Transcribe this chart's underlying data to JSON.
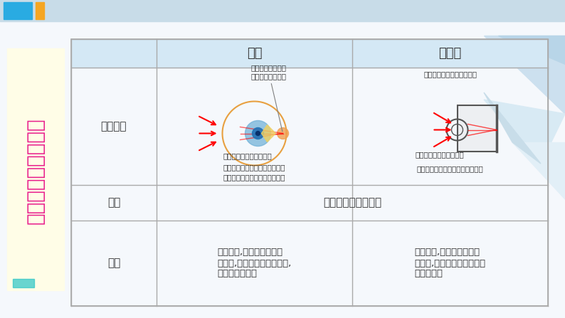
{
  "bg_color": "#f0f4f8",
  "header_bar_color": "#c8d8e8",
  "top_bar_blue": "#29abe2",
  "top_bar_yellow": "#f5a623",
  "title_text": "眼睛与照相机的对比",
  "title_bg": "#fffde7",
  "title_color": "#e91e8c",
  "table_bg": "#ffffff",
  "table_header_bg": "#ddeeff",
  "table_border": "#aaaaaa",
  "col_headers": [
    "",
    "眼睛",
    "照相机"
  ],
  "row1_label": "主要结构",
  "row2_label": "成像",
  "row3_label": "调节",
  "row2_eye": "成倒立、缩小的实像",
  "row2_cam": "",
  "row3_eye": "像距不变,当物距增大（减\n小）时,晶状体变平（变厚）,\n焦距变大（小）",
  "row3_cam": "焦距不变,当物距增大（减\n小）时,减小（增大）镜头到\n底片的距离",
  "eye_annotations": [
    "视网膜（有感光细\n胞，相当于光屏）",
    "瞳孔（可控制光的强度）",
    "晶状体（角膜、晶状体、玻璃体\n的共同作用相当于一个凸透镜）"
  ],
  "cam_annotations": [
    "镜头（相当于一个凸透镜）",
    "光圈（可控制光的强度）",
    "底片（有感光材料，相当于光屏）"
  ]
}
